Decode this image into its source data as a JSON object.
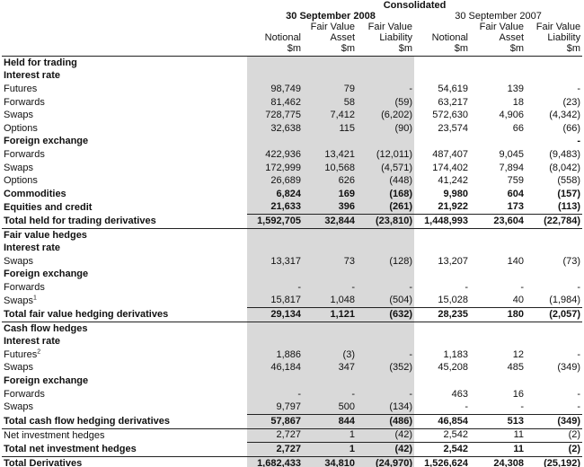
{
  "header": {
    "group": "Consolidated",
    "periods": [
      "30 September 2008",
      "30 September 2007"
    ],
    "columns": [
      [
        "Notional",
        "$m"
      ],
      [
        "Fair Value",
        "Asset",
        "$m"
      ],
      [
        "Fair Value",
        "Liability",
        "$m"
      ],
      [
        "Notional",
        "$m"
      ],
      [
        "Fair Value",
        "Asset",
        "$m"
      ],
      [
        "Fair Value",
        "Liability",
        "$m"
      ]
    ]
  },
  "table": {
    "rows": [
      {
        "label": "Held for trading"
      },
      {
        "label": "Interest rate"
      },
      {
        "label": "Futures",
        "cells": [
          "98,749",
          "79",
          "-",
          "54,619",
          "139",
          "-"
        ]
      },
      {
        "label": "Forwards",
        "cells": [
          "81,462",
          "58",
          "(59)",
          "63,217",
          "18",
          "(23)"
        ]
      },
      {
        "label": "Swaps",
        "cells": [
          "728,775",
          "7,412",
          "(6,202)",
          "572,630",
          "4,906",
          "(4,342)"
        ]
      },
      {
        "label": "Options",
        "cells": [
          "32,638",
          "115",
          "(90)",
          "23,574",
          "66",
          "(66)"
        ]
      },
      {
        "label": "Foreign exchange",
        "cells": [
          null,
          null,
          null,
          null,
          null,
          "-"
        ]
      },
      {
        "label": "Forwards",
        "cells": [
          "422,936",
          "13,421",
          "(12,011)",
          "487,407",
          "9,045",
          "(9,483)"
        ]
      },
      {
        "label": "Swaps",
        "cells": [
          "172,999",
          "10,568",
          "(4,571)",
          "174,402",
          "7,894",
          "(8,042)"
        ]
      },
      {
        "label": "Options",
        "cells": [
          "26,689",
          "626",
          "(448)",
          "41,242",
          "759",
          "(558)"
        ]
      },
      {
        "label": "Commodities",
        "cells": [
          "6,824",
          "169",
          "(168)",
          "9,980",
          "604",
          "(157)"
        ]
      },
      {
        "label": "Equities and credit",
        "cells": [
          "21,633",
          "396",
          "(261)",
          "21,922",
          "173",
          "(113)"
        ]
      },
      {
        "label": "Total held for trading derivatives",
        "cells": [
          "1,592,705",
          "32,844",
          "(23,810)",
          "1,448,993",
          "23,604",
          "(22,784)"
        ]
      },
      {
        "label": "Fair value hedges"
      },
      {
        "label": "Interest rate"
      },
      {
        "label": "Swaps",
        "cells": [
          "13,317",
          "73",
          "(128)",
          "13,207",
          "140",
          "(73)"
        ]
      },
      {
        "label": "Foreign exchange"
      },
      {
        "label": "Forwards",
        "cells": [
          "-",
          "-",
          "-",
          "-",
          "-",
          "-"
        ]
      },
      {
        "label": "Swaps",
        "note": "1",
        "cells": [
          "15,817",
          "1,048",
          "(504)",
          "15,028",
          "40",
          "(1,984)"
        ]
      },
      {
        "label": "Total fair value hedging derivatives",
        "cells": [
          "29,134",
          "1,121",
          "(632)",
          "28,235",
          "180",
          "(2,057)"
        ]
      },
      {
        "label": "Cash flow hedges"
      },
      {
        "label": "Interest rate"
      },
      {
        "label": "Futures",
        "note": "2",
        "cells": [
          "1,886",
          "(3)",
          "-",
          "1,183",
          "12",
          "-"
        ]
      },
      {
        "label": "Swaps",
        "cells": [
          "46,184",
          "347",
          "(352)",
          "45,208",
          "485",
          "(349)"
        ]
      },
      {
        "label": "Foreign exchange"
      },
      {
        "label": "Forwards",
        "cells": [
          "-",
          "-",
          "-",
          "463",
          "16",
          "-"
        ]
      },
      {
        "label": "Swaps",
        "cells": [
          "9,797",
          "500",
          "(134)",
          "-",
          "-",
          "-"
        ]
      },
      {
        "label": "Total cash flow hedging derivatives",
        "cells": [
          "57,867",
          "844",
          "(486)",
          "46,854",
          "513",
          "(349)"
        ]
      },
      {
        "label": "Net investment hedges",
        "cells": [
          "2,727",
          "1",
          "(42)",
          "2,542",
          "11",
          "(2)"
        ]
      },
      {
        "label": "Total net investment hedges",
        "cells": [
          "2,727",
          "1",
          "(42)",
          "2,542",
          "11",
          "(2)"
        ]
      },
      {
        "label": "Total Derivatives",
        "cells": [
          "1,682,433",
          "34,810",
          "(24,970)",
          "1,526,624",
          "24,308",
          "(25,192)"
        ]
      }
    ]
  }
}
